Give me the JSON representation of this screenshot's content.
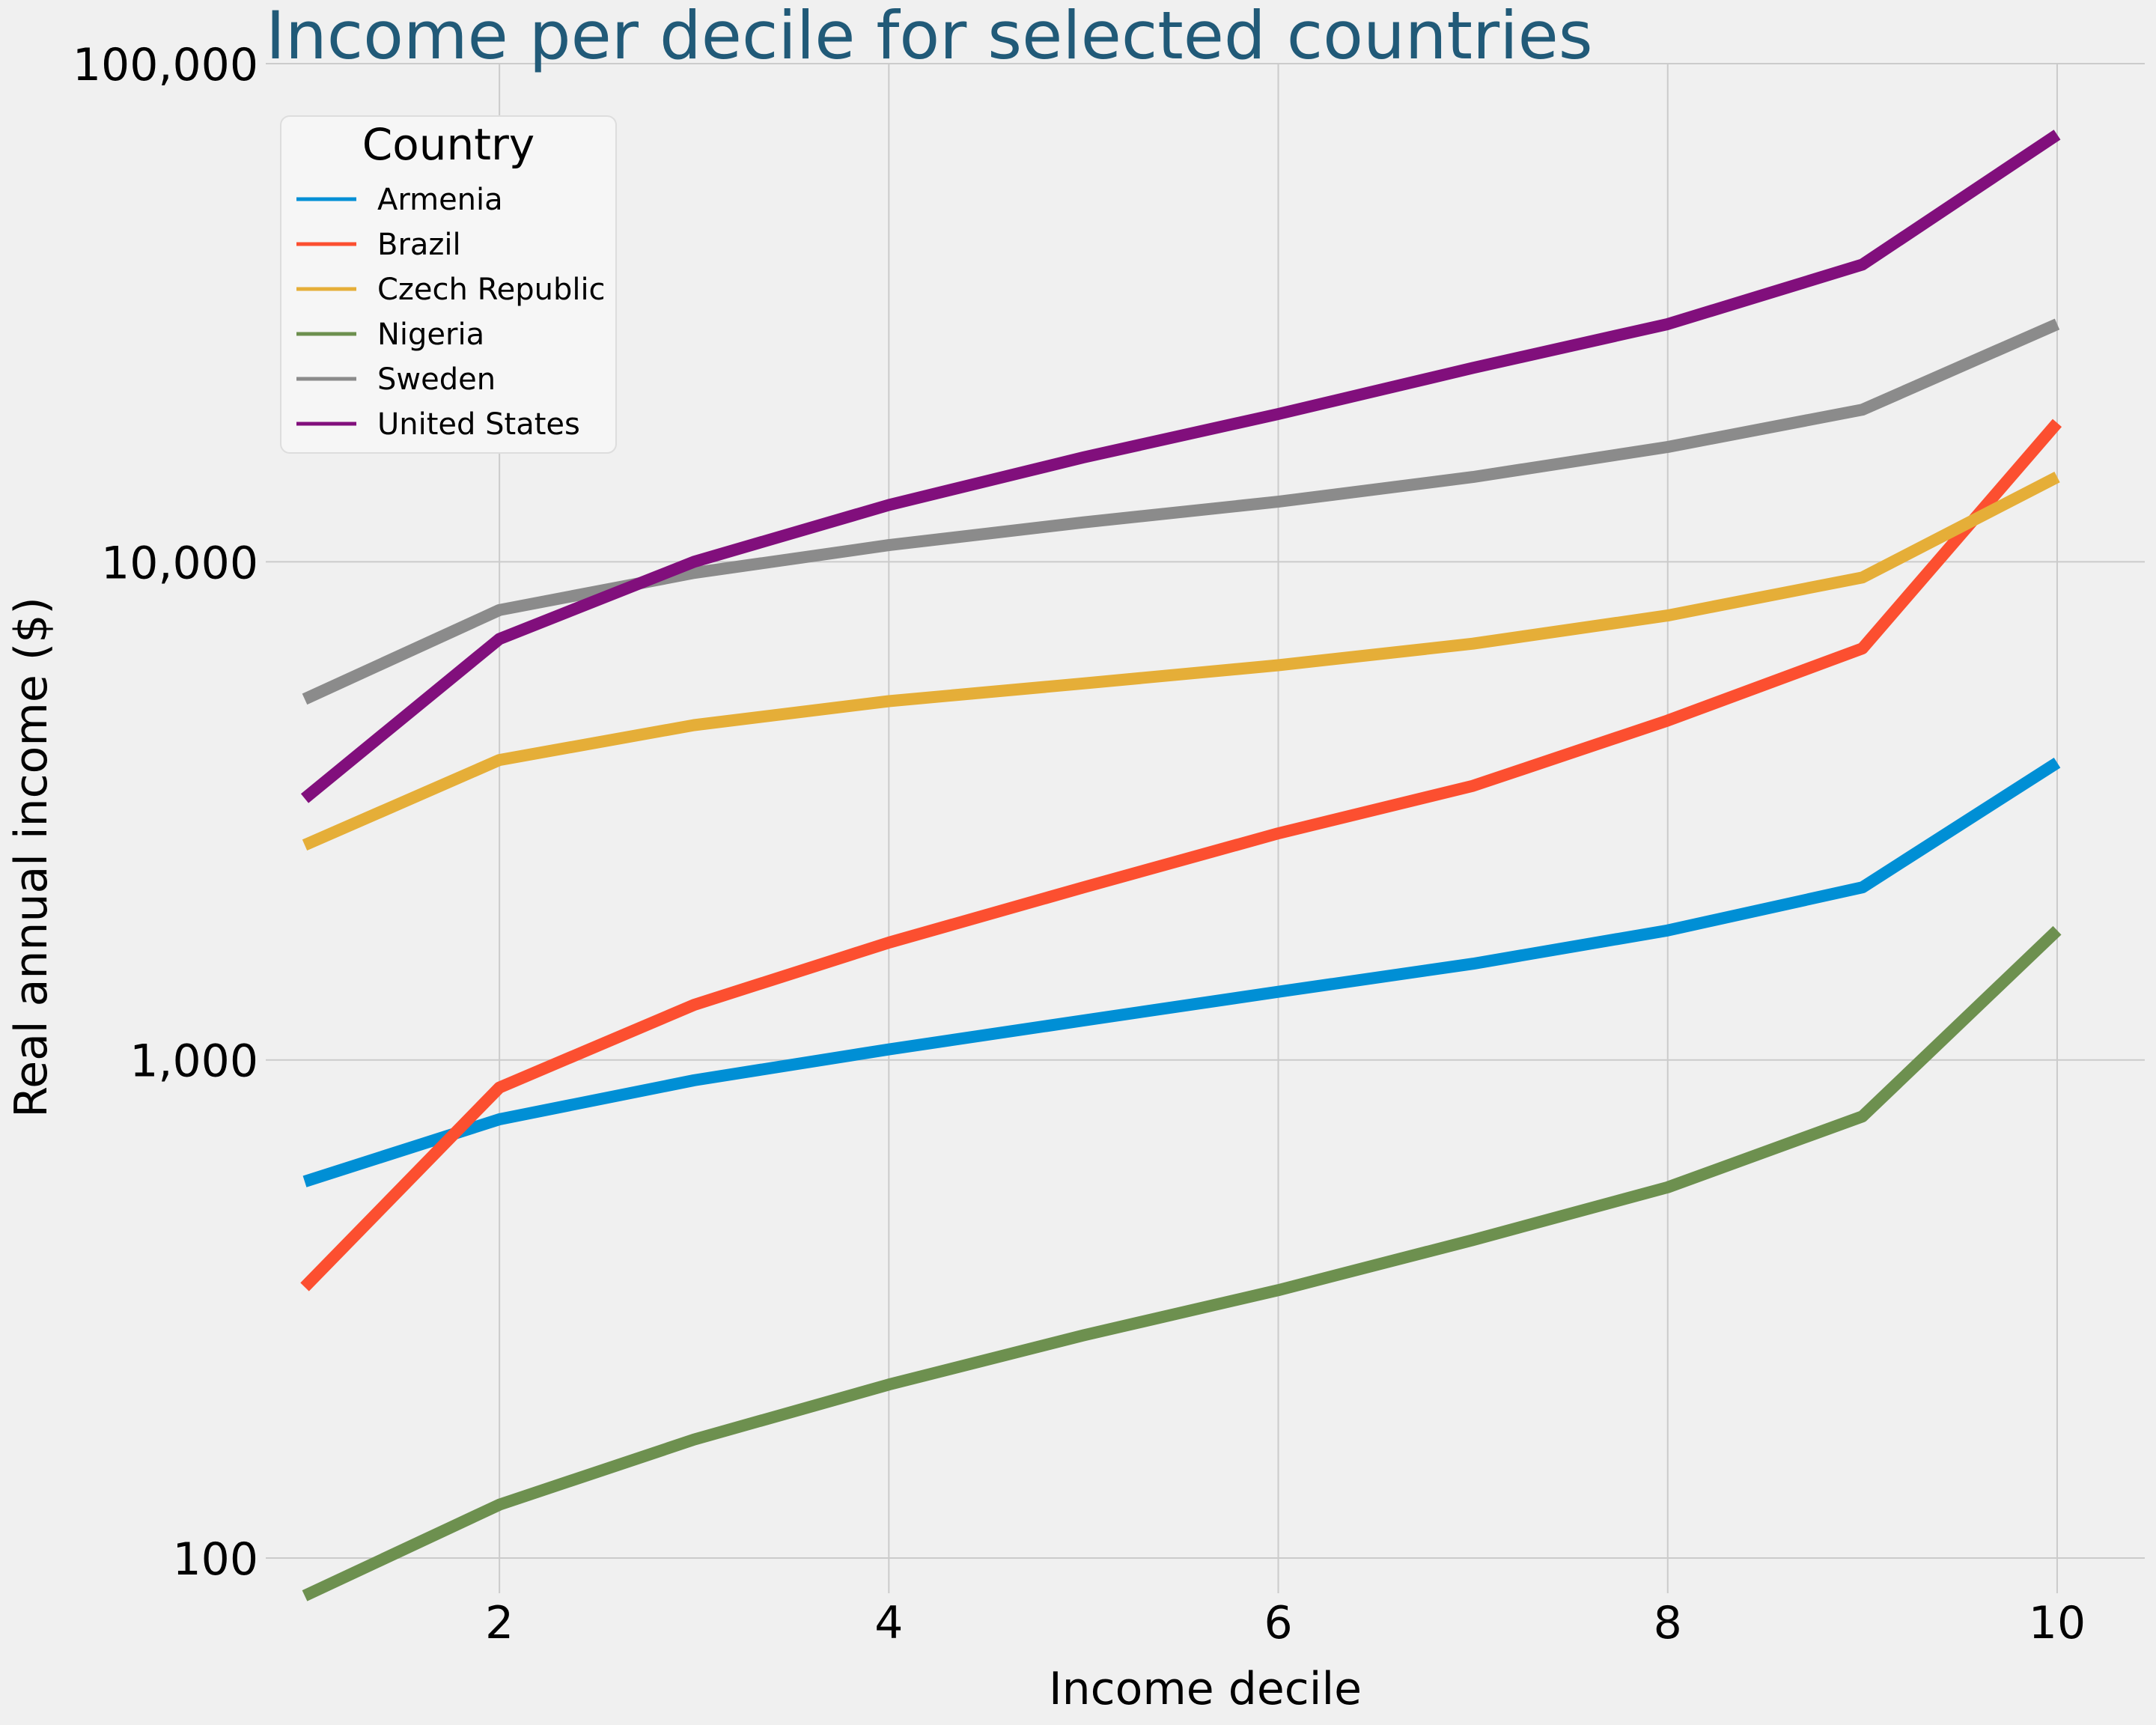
{
  "chart_data": {
    "type": "line",
    "title": "Income per decile for selected countries",
    "xlabel": "Income decile",
    "ylabel": "Real annual income ($)",
    "yscale": "log",
    "xlim": [
      0.8,
      10.45
    ],
    "ylim": [
      85,
      100000
    ],
    "x": [
      1,
      2,
      3,
      4,
      5,
      6,
      7,
      8,
      9,
      10
    ],
    "xticks": [
      2,
      4,
      6,
      8,
      10
    ],
    "xtick_labels": [
      "2",
      "4",
      "6",
      "8",
      "10"
    ],
    "yticks": [
      100,
      1000,
      10000,
      100000
    ],
    "ytick_labels": [
      "100",
      "1,000",
      "10,000",
      "100,000"
    ],
    "grid": true,
    "legend_title": "Country",
    "legend_position": "top-left",
    "series": [
      {
        "name": "Armenia",
        "color": "#008fd5",
        "values": [
          570,
          760,
          910,
          1050,
          1200,
          1370,
          1560,
          1820,
          2220,
          3950
        ]
      },
      {
        "name": "Brazil",
        "color": "#fc4f30",
        "values": [
          350,
          880,
          1290,
          1720,
          2220,
          2850,
          3550,
          4800,
          6700,
          19000
        ]
      },
      {
        "name": "Czech Republic",
        "color": "#e5ae38",
        "values": [
          2700,
          4000,
          4700,
          5250,
          5700,
          6200,
          6850,
          7800,
          9300,
          14800
        ]
      },
      {
        "name": "Nigeria",
        "color": "#6d904f",
        "values": [
          84,
          128,
          173,
          223,
          280,
          345,
          435,
          555,
          770,
          1820
        ]
      },
      {
        "name": "Sweden",
        "color": "#8b8b8b",
        "values": [
          5300,
          8000,
          9500,
          10800,
          12000,
          13200,
          14800,
          17000,
          20200,
          30000
        ]
      },
      {
        "name": "United States",
        "color": "#810f7c",
        "values": [
          3350,
          7000,
          10000,
          13000,
          16200,
          19800,
          24500,
          30000,
          39500,
          72000
        ]
      }
    ]
  }
}
